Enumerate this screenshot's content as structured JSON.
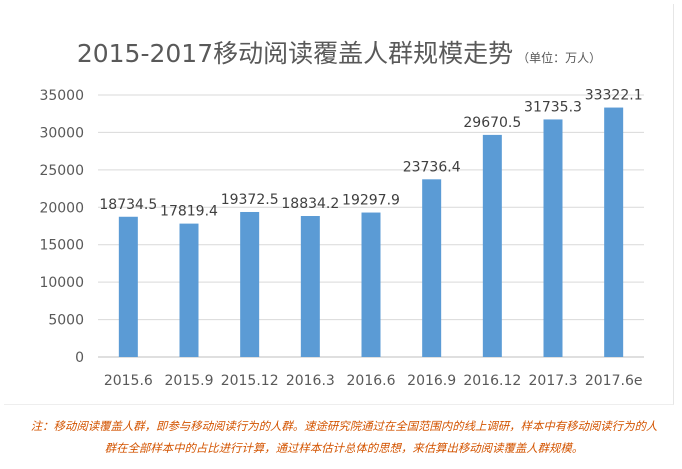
{
  "chart_data": {
    "type": "bar",
    "title": "2015-2017移动阅读覆盖人群规模走势",
    "subtitle": "（单位：万人）",
    "categories": [
      "2015.6",
      "2015.9",
      "2015.12",
      "2016.3",
      "2016.6",
      "2016.9",
      "2016.12",
      "2017.3",
      "2017.6e"
    ],
    "values": [
      18734.5,
      17819.4,
      19372.5,
      18834.2,
      19297.9,
      23736.4,
      29670.5,
      31735.3,
      33322.1
    ],
    "value_labels": [
      "18734.5",
      "17819.4",
      "19372.5",
      "18834.2",
      "19297.9",
      "23736.4",
      "29670.5",
      "31735.3",
      "33322.1"
    ],
    "ylim": [
      0,
      35000
    ],
    "yticks": [
      "0",
      "5000",
      "10000",
      "15000",
      "20000",
      "25000",
      "30000",
      "35000"
    ],
    "xlabel": "",
    "ylabel": "",
    "grid": true,
    "bar_color": "#5b9bd5"
  },
  "note": {
    "line1": "注：移动阅读覆盖人群，即参与移动阅读行为的人群。速途研究院通过在全国范围内的线上调研，样本中有移动阅读行为的人",
    "line2": "群在全部样本中的占比进行计算，通过样本估计总体的思想，来估算出移动阅读覆盖人群规模。"
  }
}
